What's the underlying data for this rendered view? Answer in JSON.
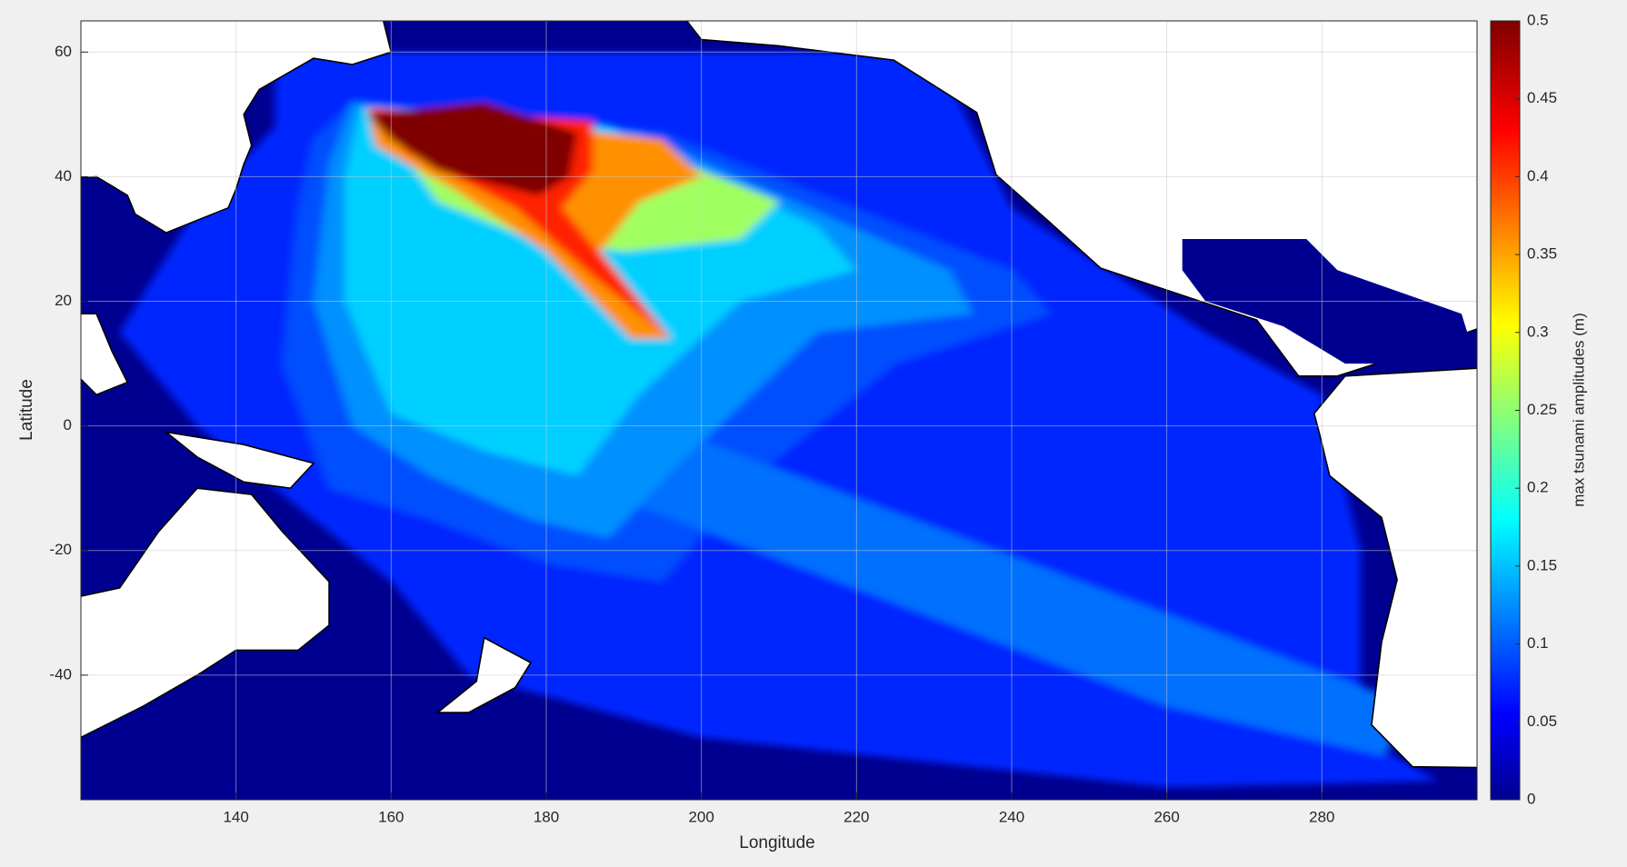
{
  "chart_data": {
    "type": "map",
    "xlabel": "Longitude",
    "ylabel": "Latitude",
    "xlim": [
      120,
      300
    ],
    "ylim": [
      -60,
      65
    ],
    "xticks": [
      140,
      160,
      180,
      200,
      220,
      240,
      260,
      280
    ],
    "yticks": [
      -40,
      -20,
      0,
      20,
      40,
      60
    ],
    "grid": true,
    "colorbar": {
      "label": "max tsunami amplitudes (m)",
      "colormap": "jet",
      "lim": [
        0,
        0.5
      ],
      "ticks": [
        0,
        0.05,
        0.1,
        0.15,
        0.2,
        0.25,
        0.3,
        0.35,
        0.4,
        0.45,
        0.5
      ]
    }
  }
}
